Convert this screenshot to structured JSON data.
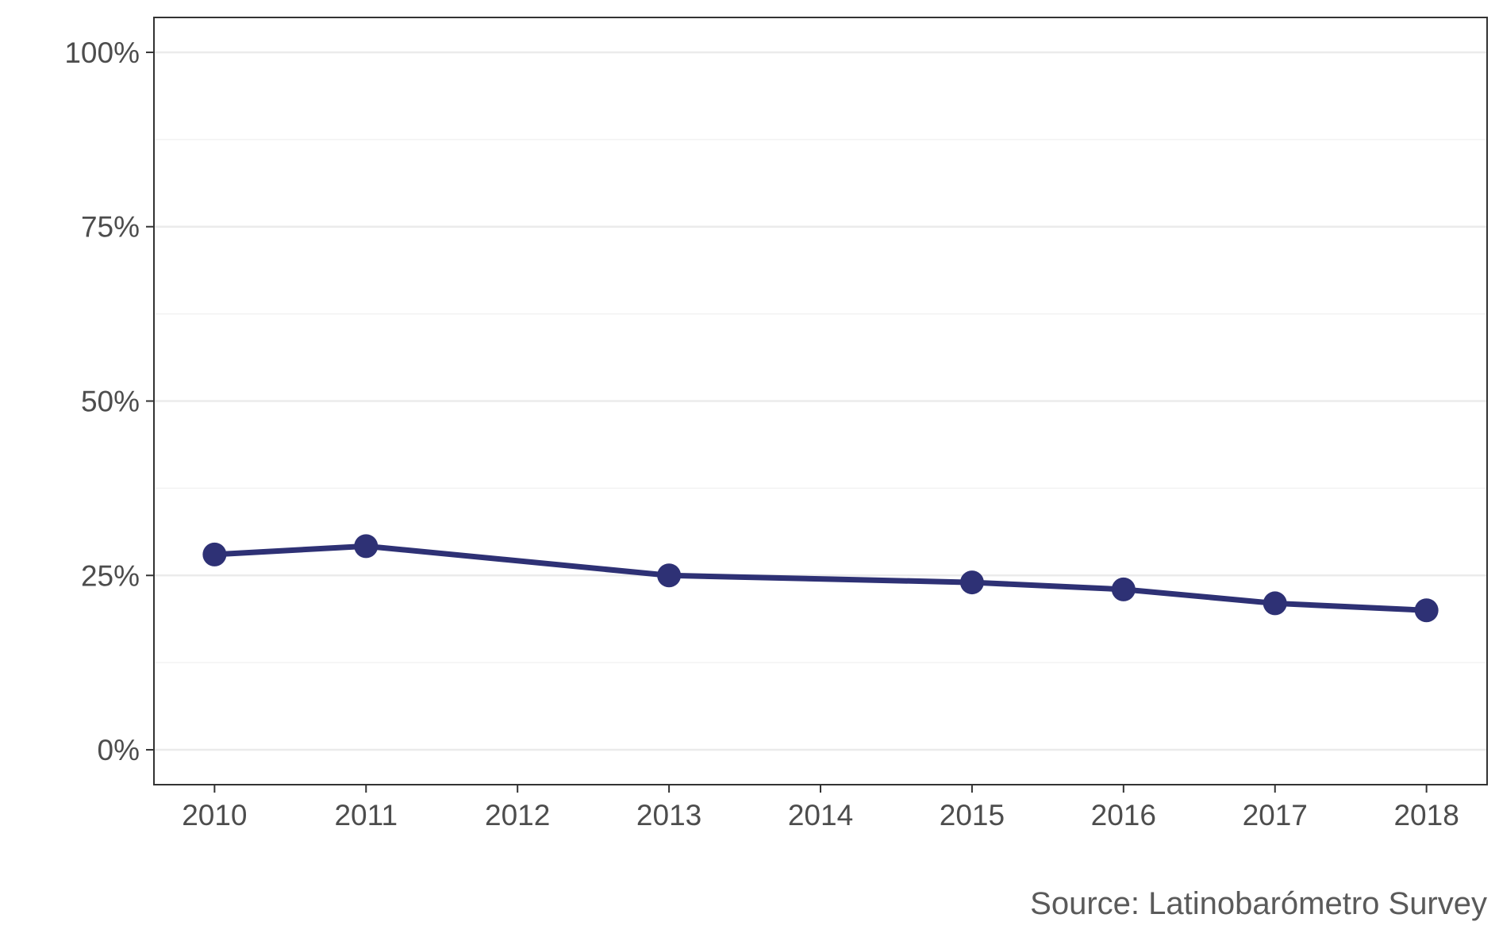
{
  "chart_data": {
    "type": "line",
    "x": [
      2010,
      2011,
      2013,
      2015,
      2016,
      2017,
      2018
    ],
    "series": [
      {
        "values": [
          28,
          29.2,
          25,
          24,
          23,
          21,
          20
        ]
      }
    ],
    "x_ticks": [
      "2010",
      "2011",
      "2012",
      "2013",
      "2014",
      "2015",
      "2016",
      "2017",
      "2018"
    ],
    "y_ticks": [
      "0%",
      "25%",
      "50%",
      "75%",
      "100%"
    ],
    "xlim": [
      2009.6,
      2018.4
    ],
    "ylim": [
      -5,
      105
    ],
    "ylabel_format": "percent",
    "grid": true,
    "legend": "none",
    "caption": "Source: Latinobarómetro Survey",
    "colors": {
      "line": "#2e3175",
      "grid_major": "#ebebeb",
      "grid_minor": "#f2f2f2",
      "axis": "#333333",
      "text": "#4d4d4d"
    }
  }
}
